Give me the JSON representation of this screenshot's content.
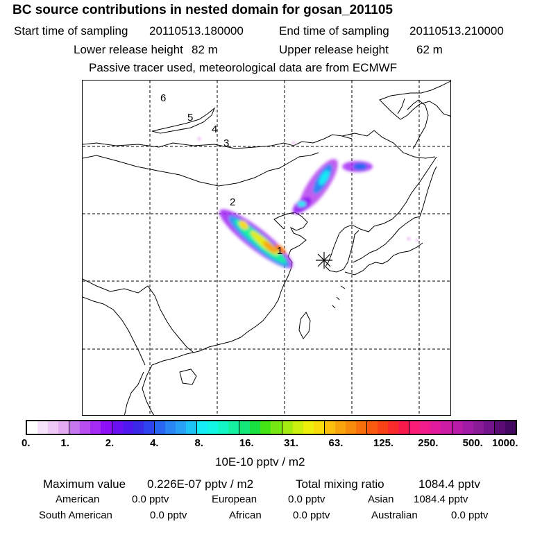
{
  "header": {
    "title": "BC  source contributions in nested domain for gosan_201105",
    "start_label": "Start time of sampling",
    "start_value": "20110513.180000",
    "end_label": "End time of sampling",
    "end_value": "20110513.210000",
    "lower_label": "Lower release height",
    "lower_value": "82 m",
    "upper_label": "Upper release height",
    "upper_value": "62 m",
    "tracer_note": "Passive tracer used, meteorological data are from ECMWF"
  },
  "map": {
    "trajectory_labels": [
      "6",
      "5",
      "4",
      "3",
      "2",
      "1"
    ],
    "receptor_marker": "gosan-receptor"
  },
  "colorbar": {
    "ticks": [
      "0.",
      "1.",
      "2.",
      "4.",
      "8.",
      "16.",
      "31.",
      "63.",
      "125.",
      "250.",
      "500.",
      "1000."
    ],
    "colors": [
      "#ffffff",
      "#f6e3fb",
      "#eec8f6",
      "#e4aaf2",
      "#c575ee",
      "#b94ef0",
      "#a52cf5",
      "#8c10f5",
      "#6a10f2",
      "#5018ee",
      "#3a2ae8",
      "#2e44ee",
      "#2866f2",
      "#2a86f5",
      "#28a0f5",
      "#1ec4f5",
      "#16ecf5",
      "#10f5e4",
      "#12f5c4",
      "#14f0a0",
      "#14e878",
      "#18e040",
      "#44e414",
      "#78e814",
      "#a4ec10",
      "#ccf00e",
      "#eef00c",
      "#f8dc0c",
      "#f8c00c",
      "#f8a40c",
      "#f88a0c",
      "#f8700c",
      "#f85a10",
      "#f84216",
      "#f82a2a",
      "#f81a4a",
      "#f81c74",
      "#f01c8c",
      "#e01c9c",
      "#cc1ca4",
      "#b81ca8",
      "#a01ca4",
      "#8a1c98",
      "#74148a",
      "#5a0c74",
      "#440860"
    ],
    "units": "10E-10 pptv / m2"
  },
  "stats": {
    "max_label": "Maximum value",
    "max_value": "0.226E-07 pptv / m2",
    "total_label": "Total mixing ratio",
    "total_value": "1084.4 pptv",
    "regions": [
      {
        "name": "American",
        "value": "0.0 pptv"
      },
      {
        "name": "European",
        "value": "0.0 pptv"
      },
      {
        "name": "Asian",
        "value": "1084.4 pptv"
      },
      {
        "name": "South American",
        "value": "0.0 pptv"
      },
      {
        "name": "African",
        "value": "0.0 pptv"
      },
      {
        "name": "Australian",
        "value": "0.0 pptv"
      }
    ]
  }
}
